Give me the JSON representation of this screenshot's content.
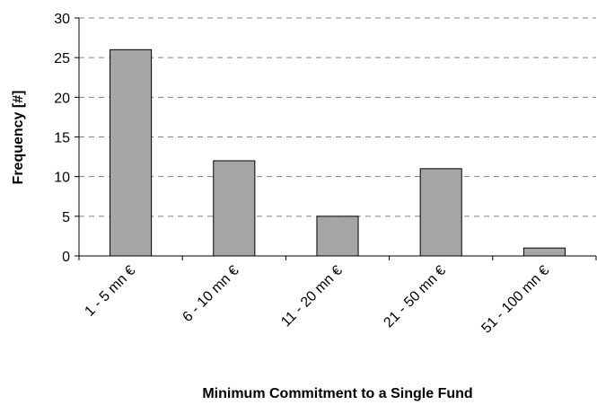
{
  "chart_data": {
    "type": "bar",
    "categories": [
      "1 - 5 mn €",
      "6 - 10 mn €",
      "11 - 20 mn €",
      "21 - 50 mn €",
      "51 - 100 mn €"
    ],
    "values": [
      26,
      12,
      5,
      11,
      1
    ],
    "title": "",
    "xlabel": "Minimum Commitment to a Single Fund",
    "ylabel": "Frequency [#]",
    "ylim": [
      0,
      30
    ],
    "yticks": [
      0,
      5,
      10,
      15,
      20,
      25,
      30
    ],
    "grid": true,
    "legend": "none",
    "bar_color": "#a6a6a6"
  }
}
